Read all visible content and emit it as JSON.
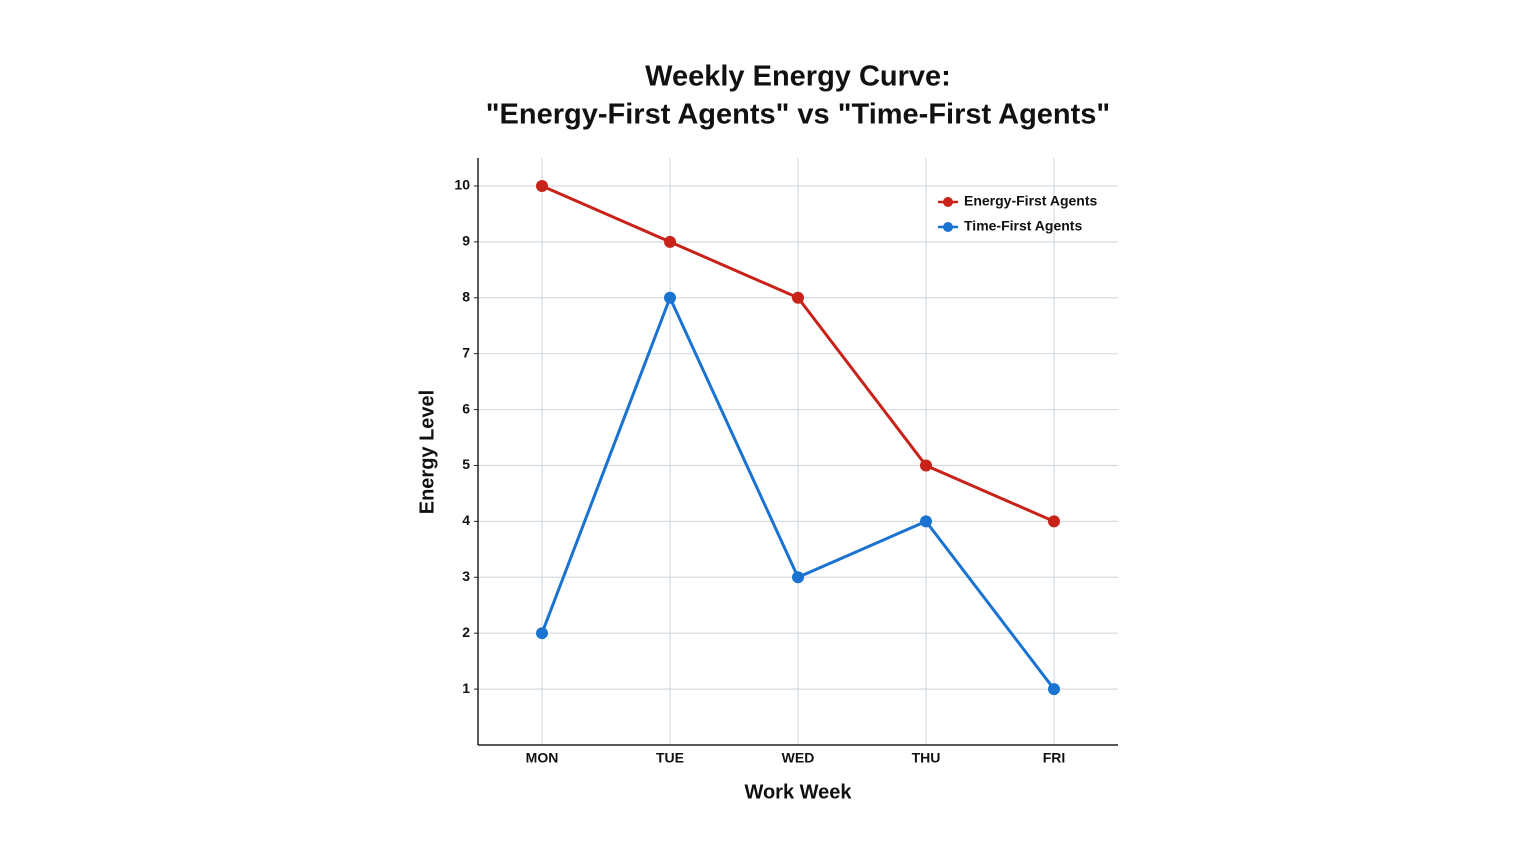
{
  "chart_data": {
    "type": "line",
    "title": [
      "Weekly Energy Curve:",
      "\"Energy-First Agents\" vs \"Time-First Agents\""
    ],
    "x_label": "Work Week",
    "y_label": "Energy Level",
    "categories": [
      "MON",
      "TUE",
      "WED",
      "THU",
      "FRI"
    ],
    "series": [
      {
        "name": "Energy-First Agents",
        "color": "#c8231a",
        "values": [
          10,
          9,
          8,
          5,
          4
        ]
      },
      {
        "name": "Time-First Agents",
        "color": "#1a73d0",
        "values": [
          2,
          8,
          3,
          4,
          1
        ]
      }
    ],
    "ylim": [
      0,
      10.5
    ],
    "yticks": [
      1,
      2,
      3,
      4,
      5,
      6,
      7,
      8,
      9,
      10
    ],
    "grid": true,
    "legend": "upper right"
  }
}
